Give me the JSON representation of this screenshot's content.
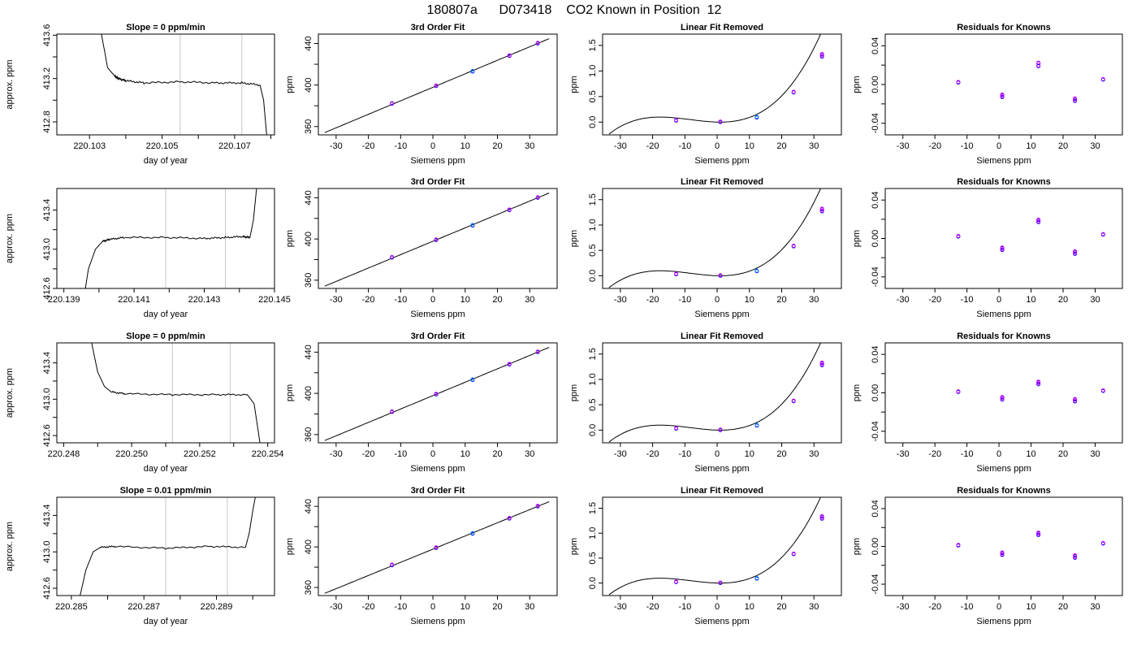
{
  "figure": {
    "title": "180807a      D073418    CO2 Known in Position  12",
    "colors": {
      "axis": "#000000",
      "line": "#000000",
      "vline": "#c8c8c8",
      "ring_a": "#0000ff",
      "ring_b": "#ff00ff",
      "ring_c": "#00a0ff"
    }
  },
  "chart_data": [
    {
      "type": "line",
      "row": 1,
      "title": "Slope =  0  ppm/min",
      "xlabel": "day of year",
      "ylabel": "approx. ppm",
      "xlim": [
        220.1021,
        220.1081
      ],
      "ylim": [
        412.68,
        413.61
      ],
      "xticks": [
        "220.103",
        "220.105",
        "220.107"
      ],
      "xticks_v": [
        220.103,
        220.105,
        220.107
      ],
      "xminor": [
        220.104,
        220.106,
        220.108
      ],
      "yticks": [
        "412.8",
        "413.2",
        "413.6"
      ],
      "yticks_v": [
        412.8,
        413.2,
        413.6
      ],
      "yminor": [
        413.0,
        413.4
      ],
      "vlines": [
        220.1055,
        220.1072
      ],
      "series": {
        "x": [
          220.1033,
          220.1035,
          220.1037,
          220.1038,
          220.104,
          220.1045,
          220.1055,
          220.1065,
          220.1072,
          220.1077,
          220.1078,
          220.1079
        ],
        "y": [
          413.66,
          413.3,
          413.22,
          413.2,
          413.18,
          413.16,
          413.17,
          413.16,
          413.16,
          413.14,
          413.0,
          412.62
        ]
      }
    },
    {
      "type": "line",
      "row": 2,
      "title": "",
      "xlabel": "day of year",
      "ylabel": "approx. ppm",
      "xlim": [
        220.1388,
        220.145
      ],
      "ylim": [
        412.6,
        413.62
      ],
      "xticks": [
        "220.139",
        "220.141",
        "220.143",
        "220.145"
      ],
      "xticks_v": [
        220.139,
        220.141,
        220.143,
        220.145
      ],
      "xminor": [
        220.14,
        220.142,
        220.144
      ],
      "yticks": [
        "412.6",
        "413.0",
        "413.4"
      ],
      "yticks_v": [
        412.6,
        413.0,
        413.4
      ],
      "yminor": [
        412.8,
        413.2
      ],
      "vlines": [
        220.1419,
        220.1436
      ],
      "series": {
        "x": [
          220.1396,
          220.1397,
          220.1399,
          220.1401,
          220.1403,
          220.1407,
          220.1419,
          220.143,
          220.1436,
          220.1441,
          220.1443,
          220.1444,
          220.1445
        ],
        "y": [
          412.57,
          412.8,
          413.0,
          413.08,
          413.1,
          413.12,
          413.12,
          413.11,
          413.12,
          413.13,
          413.12,
          413.3,
          413.66
        ]
      }
    },
    {
      "type": "line",
      "row": 3,
      "title": "Slope =  0  ppm/min",
      "xlabel": "day of year",
      "ylabel": "approx. ppm",
      "xlim": [
        220.2478,
        220.2542
      ],
      "ylim": [
        412.52,
        413.62
      ],
      "xticks": [
        "220.248",
        "220.250",
        "220.252",
        "220.254"
      ],
      "xticks_v": [
        220.248,
        220.25,
        220.252,
        220.254
      ],
      "xminor": [
        220.249,
        220.251,
        220.253
      ],
      "yticks": [
        "412.6",
        "413.0",
        "413.4"
      ],
      "yticks_v": [
        412.6,
        413.0,
        413.4
      ],
      "yminor": [
        412.8,
        413.2
      ],
      "vlines": [
        220.2512,
        220.2529
      ],
      "series": {
        "x": [
          220.2488,
          220.249,
          220.2492,
          220.2494,
          220.2498,
          220.2512,
          220.2525,
          220.2534,
          220.2536,
          220.2537,
          220.2538
        ],
        "y": [
          413.66,
          413.3,
          413.14,
          413.08,
          413.06,
          413.05,
          413.05,
          413.05,
          412.95,
          412.7,
          412.45
        ]
      }
    },
    {
      "type": "line",
      "row": 4,
      "title": "Slope =  0.01  ppm/min",
      "xlabel": "day of year",
      "ylabel": "approx. ppm",
      "xlim": [
        220.2846,
        220.2906
      ],
      "ylim": [
        412.52,
        413.6
      ],
      "xticks": [
        "220.285",
        "220.287",
        "220.289"
      ],
      "xticks_v": [
        220.285,
        220.287,
        220.289
      ],
      "xminor": [
        220.286,
        220.288,
        220.29
      ],
      "yticks": [
        "412.6",
        "413.0",
        "413.4"
      ],
      "yticks_v": [
        412.6,
        413.0,
        413.4
      ],
      "yminor": [
        412.8,
        413.2
      ],
      "vlines": [
        220.2876,
        220.2893
      ],
      "series": {
        "x": [
          220.2852,
          220.2854,
          220.2856,
          220.2858,
          220.2862,
          220.2876,
          220.2888,
          220.2898,
          220.2899,
          220.29,
          220.2901
        ],
        "y": [
          412.45,
          412.8,
          413.0,
          413.05,
          413.06,
          413.04,
          413.06,
          413.05,
          413.2,
          413.45,
          413.66
        ]
      }
    },
    {
      "type": "scatter",
      "row": 1,
      "title": "3rd Order Fit",
      "xlabel": "Siemens ppm",
      "ylabel": "ppm",
      "xlim": [
        -35.5,
        38.5
      ],
      "ylim": [
        352,
        449
      ],
      "xticks": [
        "-30",
        "-20",
        "-10",
        "0",
        "10",
        "20",
        "30"
      ],
      "xticks_v": [
        -30,
        -20,
        -10,
        0,
        10,
        20,
        30
      ],
      "yticks": [
        "360",
        "400",
        "440"
      ],
      "yticks_v": [
        360,
        400,
        440
      ],
      "yminor": [
        380,
        420
      ],
      "curve": "fit3",
      "points": [
        [
          -12.7,
          382
        ],
        [
          1.0,
          399
        ],
        [
          12.3,
          413
        ],
        [
          23.7,
          428
        ],
        [
          32.5,
          440
        ]
      ]
    },
    {
      "type": "scatter",
      "row": 2,
      "title": "3rd Order Fit",
      "xlabel": "Siemens ppm",
      "ylabel": "ppm",
      "xlim": [
        -35.5,
        38.5
      ],
      "ylim": [
        352,
        449
      ],
      "xticks": [
        "-30",
        "-20",
        "-10",
        "0",
        "10",
        "20",
        "30"
      ],
      "xticks_v": [
        -30,
        -20,
        -10,
        0,
        10,
        20,
        30
      ],
      "yticks": [
        "360",
        "400",
        "440"
      ],
      "yticks_v": [
        360,
        400,
        440
      ],
      "yminor": [
        380,
        420
      ],
      "curve": "fit3",
      "points": [
        [
          -12.7,
          382
        ],
        [
          1.0,
          399
        ],
        [
          12.3,
          413
        ],
        [
          23.7,
          428
        ],
        [
          32.5,
          440
        ]
      ]
    },
    {
      "type": "scatter",
      "row": 3,
      "title": "3rd Order Fit",
      "xlabel": "Siemens ppm",
      "ylabel": "ppm",
      "xlim": [
        -35.5,
        38.5
      ],
      "ylim": [
        352,
        449
      ],
      "xticks": [
        "-30",
        "-20",
        "-10",
        "0",
        "10",
        "20",
        "30"
      ],
      "xticks_v": [
        -30,
        -20,
        -10,
        0,
        10,
        20,
        30
      ],
      "yticks": [
        "360",
        "400",
        "440"
      ],
      "yticks_v": [
        360,
        400,
        440
      ],
      "yminor": [
        380,
        420
      ],
      "curve": "fit3",
      "points": [
        [
          -12.7,
          382
        ],
        [
          1.0,
          399
        ],
        [
          12.3,
          413
        ],
        [
          23.7,
          428
        ],
        [
          32.5,
          440
        ]
      ]
    },
    {
      "type": "scatter",
      "row": 4,
      "title": "3rd Order Fit",
      "xlabel": "Siemens ppm",
      "ylabel": "ppm",
      "xlim": [
        -35.5,
        38.5
      ],
      "ylim": [
        352,
        449
      ],
      "xticks": [
        "-30",
        "-20",
        "-10",
        "0",
        "10",
        "20",
        "30"
      ],
      "xticks_v": [
        -30,
        -20,
        -10,
        0,
        10,
        20,
        30
      ],
      "yticks": [
        "360",
        "400",
        "440"
      ],
      "yticks_v": [
        360,
        400,
        440
      ],
      "yminor": [
        380,
        420
      ],
      "curve": "fit3",
      "points": [
        [
          -12.7,
          382
        ],
        [
          1.0,
          399
        ],
        [
          12.3,
          413
        ],
        [
          23.7,
          428
        ],
        [
          32.5,
          440
        ]
      ]
    },
    {
      "type": "scatter",
      "row": 1,
      "title": "Linear Fit Removed",
      "xlabel": "Siemens ppm",
      "ylabel": "ppm",
      "xlim": [
        -35.5,
        38.5
      ],
      "ylim": [
        -0.25,
        1.72
      ],
      "xticks": [
        "-30",
        "-20",
        "-10",
        "0",
        "10",
        "20",
        "30"
      ],
      "xticks_v": [
        -30,
        -20,
        -10,
        0,
        10,
        20,
        30
      ],
      "yticks": [
        "0.0",
        "0.5",
        "1.0",
        "1.5"
      ],
      "yticks_v": [
        0,
        0.5,
        1.0,
        1.5
      ],
      "curve": "cubic",
      "points": [
        [
          -12.7,
          0.03
        ],
        [
          1.0,
          0.0
        ],
        [
          12.3,
          0.09
        ],
        [
          23.7,
          0.58
        ],
        [
          32.5,
          1.28
        ],
        [
          32.5,
          1.32
        ]
      ]
    },
    {
      "type": "scatter",
      "row": 2,
      "title": "Linear Fit Removed",
      "xlabel": "Siemens ppm",
      "ylabel": "ppm",
      "xlim": [
        -35.5,
        38.5
      ],
      "ylim": [
        -0.25,
        1.72
      ],
      "xticks": [
        "-30",
        "-20",
        "-10",
        "0",
        "10",
        "20",
        "30"
      ],
      "xticks_v": [
        -30,
        -20,
        -10,
        0,
        10,
        20,
        30
      ],
      "yticks": [
        "0.0",
        "0.5",
        "1.0",
        "1.5"
      ],
      "yticks_v": [
        0,
        0.5,
        1.0,
        1.5
      ],
      "curve": "cubic",
      "points": [
        [
          -12.7,
          0.03
        ],
        [
          1.0,
          0.0
        ],
        [
          12.3,
          0.09
        ],
        [
          23.7,
          0.58
        ],
        [
          32.5,
          1.27
        ],
        [
          32.5,
          1.31
        ]
      ]
    },
    {
      "type": "scatter",
      "row": 3,
      "title": "Linear Fit Removed",
      "xlabel": "Siemens ppm",
      "ylabel": "ppm",
      "xlim": [
        -35.5,
        38.5
      ],
      "ylim": [
        -0.25,
        1.72
      ],
      "xticks": [
        "-30",
        "-20",
        "-10",
        "0",
        "10",
        "20",
        "30"
      ],
      "xticks_v": [
        -30,
        -20,
        -10,
        0,
        10,
        20,
        30
      ],
      "yticks": [
        "0.0",
        "0.5",
        "1.0",
        "1.5"
      ],
      "yticks_v": [
        0,
        0.5,
        1.0,
        1.5
      ],
      "curve": "cubic",
      "points": [
        [
          -12.7,
          0.03
        ],
        [
          1.0,
          0.0
        ],
        [
          12.3,
          0.09
        ],
        [
          23.7,
          0.57
        ],
        [
          32.5,
          1.28
        ],
        [
          32.5,
          1.32
        ]
      ]
    },
    {
      "type": "scatter",
      "row": 4,
      "title": "Linear Fit Removed",
      "xlabel": "Siemens ppm",
      "ylabel": "ppm",
      "xlim": [
        -35.5,
        38.5
      ],
      "ylim": [
        -0.25,
        1.72
      ],
      "xticks": [
        "-30",
        "-20",
        "-10",
        "0",
        "10",
        "20",
        "30"
      ],
      "xticks_v": [
        -30,
        -20,
        -10,
        0,
        10,
        20,
        30
      ],
      "yticks": [
        "0.0",
        "0.5",
        "1.0",
        "1.5"
      ],
      "yticks_v": [
        0,
        0.5,
        1.0,
        1.5
      ],
      "curve": "cubic",
      "points": [
        [
          -12.7,
          0.02
        ],
        [
          1.0,
          0.0
        ],
        [
          12.3,
          0.09
        ],
        [
          23.7,
          0.58
        ],
        [
          32.5,
          1.29
        ],
        [
          32.5,
          1.33
        ]
      ]
    },
    {
      "type": "scatter",
      "row": 1,
      "title": "Residuals for Knowns",
      "xlabel": "Siemens ppm",
      "ylabel": "ppm",
      "xlim": [
        -35.5,
        38.5
      ],
      "ylim": [
        -0.052,
        0.052
      ],
      "xticks": [
        "-30",
        "-20",
        "-10",
        "0",
        "10",
        "20",
        "30"
      ],
      "xticks_v": [
        -30,
        -20,
        -10,
        0,
        10,
        20,
        30
      ],
      "yticks": [
        "-0.04",
        "0.00",
        "0.04"
      ],
      "yticks_v": [
        -0.04,
        0,
        0.04
      ],
      "yminor": [
        -0.02,
        0.02
      ],
      "curve": "none",
      "points": [
        [
          -12.7,
          0.002
        ],
        [
          1.0,
          -0.011
        ],
        [
          1.0,
          -0.013
        ],
        [
          12.3,
          0.019
        ],
        [
          12.3,
          0.022
        ],
        [
          23.7,
          -0.015
        ],
        [
          23.7,
          -0.017
        ],
        [
          32.5,
          0.005
        ]
      ]
    },
    {
      "type": "scatter",
      "row": 2,
      "title": "Residuals for Knowns",
      "xlabel": "Siemens ppm",
      "ylabel": "ppm",
      "xlim": [
        -35.5,
        38.5
      ],
      "ylim": [
        -0.052,
        0.052
      ],
      "xticks": [
        "-30",
        "-20",
        "-10",
        "0",
        "10",
        "20",
        "30"
      ],
      "xticks_v": [
        -30,
        -20,
        -10,
        0,
        10,
        20,
        30
      ],
      "yticks": [
        "-0.04",
        "0.00",
        "0.04"
      ],
      "yticks_v": [
        -0.04,
        0,
        0.04
      ],
      "yminor": [
        -0.02,
        0.02
      ],
      "curve": "none",
      "points": [
        [
          -12.7,
          0.002
        ],
        [
          1.0,
          -0.01
        ],
        [
          1.0,
          -0.012
        ],
        [
          12.3,
          0.017
        ],
        [
          12.3,
          0.019
        ],
        [
          23.7,
          -0.014
        ],
        [
          23.7,
          -0.016
        ],
        [
          32.5,
          0.004
        ]
      ]
    },
    {
      "type": "scatter",
      "row": 3,
      "title": "Residuals for Knowns",
      "xlabel": "Siemens ppm",
      "ylabel": "ppm",
      "xlim": [
        -35.5,
        38.5
      ],
      "ylim": [
        -0.052,
        0.052
      ],
      "xticks": [
        "-30",
        "-20",
        "-10",
        "0",
        "10",
        "20",
        "30"
      ],
      "xticks_v": [
        -30,
        -20,
        -10,
        0,
        10,
        20,
        30
      ],
      "yticks": [
        "-0.04",
        "0.00",
        "0.04"
      ],
      "yticks_v": [
        -0.04,
        0,
        0.04
      ],
      "yminor": [
        -0.02,
        0.02
      ],
      "curve": "none",
      "points": [
        [
          -12.7,
          0.001
        ],
        [
          1.0,
          -0.005
        ],
        [
          1.0,
          -0.007
        ],
        [
          12.3,
          0.009
        ],
        [
          12.3,
          0.011
        ],
        [
          23.7,
          -0.007
        ],
        [
          23.7,
          -0.009
        ],
        [
          32.5,
          0.002
        ]
      ]
    },
    {
      "type": "scatter",
      "row": 4,
      "title": "Residuals for Knowns",
      "xlabel": "Siemens ppm",
      "ylabel": "ppm",
      "xlim": [
        -35.5,
        38.5
      ],
      "ylim": [
        -0.052,
        0.052
      ],
      "xticks": [
        "-30",
        "-20",
        "-10",
        "0",
        "10",
        "20",
        "30"
      ],
      "xticks_v": [
        -30,
        -20,
        -10,
        0,
        10,
        20,
        30
      ],
      "yticks": [
        "-0.04",
        "0.00",
        "0.04"
      ],
      "yticks_v": [
        -0.04,
        0,
        0.04
      ],
      "yminor": [
        -0.02,
        0.02
      ],
      "curve": "none",
      "points": [
        [
          -12.7,
          0.001
        ],
        [
          1.0,
          -0.007
        ],
        [
          1.0,
          -0.009
        ],
        [
          12.3,
          0.012
        ],
        [
          12.3,
          0.014
        ],
        [
          23.7,
          -0.01
        ],
        [
          23.7,
          -0.012
        ],
        [
          32.5,
          0.003
        ]
      ]
    }
  ]
}
